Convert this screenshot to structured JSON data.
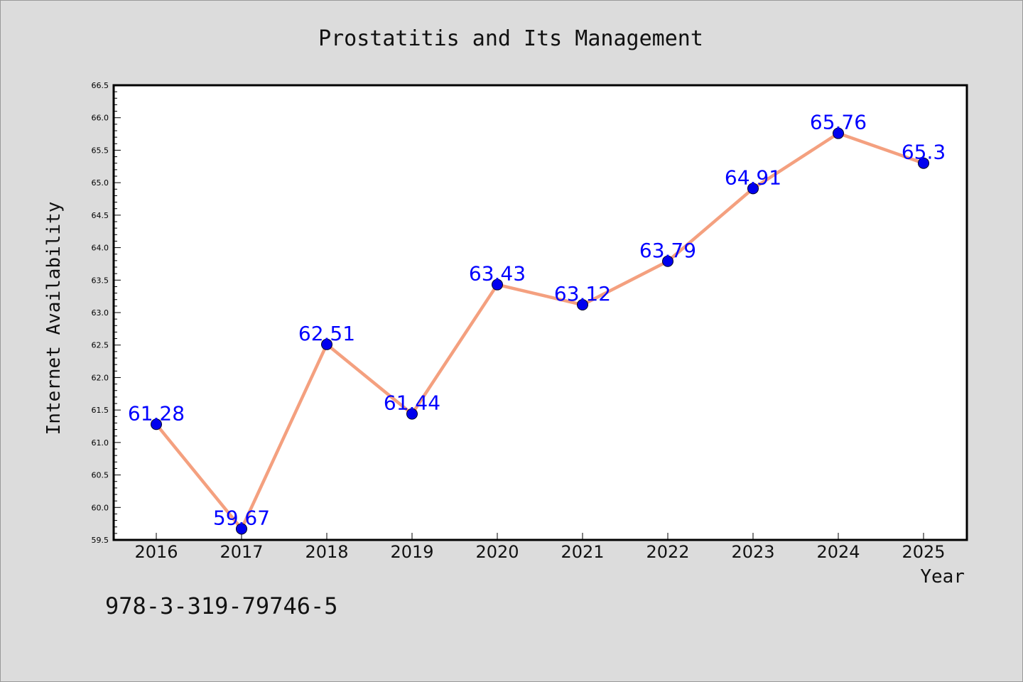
{
  "chart_data": {
    "type": "line",
    "title": "Prostatitis and Its Management",
    "xlabel": "Year",
    "ylabel": "Internet Availability",
    "footnote": "978-3-319-79746-5",
    "categories": [
      "2016",
      "2017",
      "2018",
      "2019",
      "2020",
      "2021",
      "2022",
      "2023",
      "2024",
      "2025"
    ],
    "series": [
      {
        "values": [
          61.28,
          59.67,
          62.51,
          61.44,
          63.43,
          63.12,
          63.79,
          64.91,
          65.76,
          65.3
        ],
        "labels": [
          "61.28",
          "59.67",
          "62.51",
          "61.44",
          "63.43",
          "63.12",
          "63.79",
          "64.91",
          "65.76",
          "65.3"
        ]
      }
    ],
    "ylim": [
      59.5,
      66.5
    ],
    "yticks": [
      "59.5",
      "60.0",
      "60.5",
      "61.0",
      "61.5",
      "62.0",
      "62.5",
      "63.0",
      "63.5",
      "64.0",
      "64.5",
      "65.0",
      "65.5",
      "66.0",
      "66.5"
    ],
    "grid": false,
    "colors": {
      "line": "#f4a07f",
      "marker": "#0000ee",
      "data_label": "#0000ff",
      "plot_background": "#ffffff",
      "figure_background": "#dcdcdc"
    }
  }
}
